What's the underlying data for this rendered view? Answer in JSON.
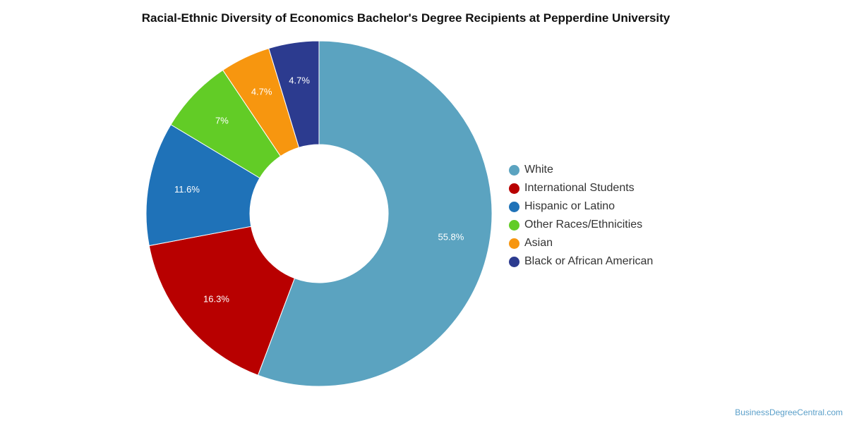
{
  "chart_data": {
    "type": "pie",
    "title": "Racial-Ethnic Diversity of Economics Bachelor's Degree Recipients at Pepperdine University",
    "categories": [
      "White",
      "International Students",
      "Hispanic or Latino",
      "Other Races/Ethnicities",
      "Asian",
      "Black or African American"
    ],
    "values": [
      55.8,
      16.3,
      11.6,
      7.0,
      4.7,
      4.7
    ],
    "labels": [
      "55.8%",
      "16.3%",
      "11.6%",
      "7%",
      "4.7%",
      "4.7%"
    ],
    "colors": [
      "#5ba3c0",
      "#b80000",
      "#1f72b8",
      "#62cc26",
      "#f7960f",
      "#2c3b8f"
    ],
    "legend_position": "right",
    "donut": true
  },
  "credit": "BusinessDegreeCentral.com"
}
